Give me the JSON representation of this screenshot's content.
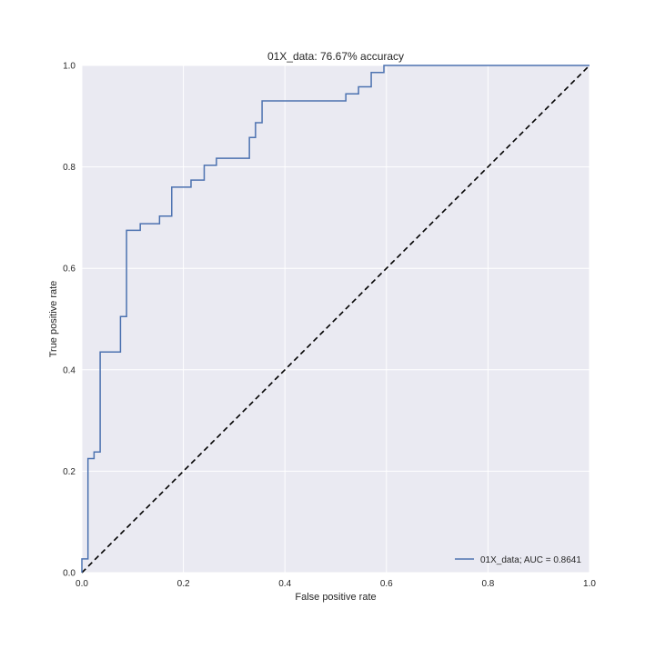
{
  "chart_data": {
    "type": "line",
    "title": "01X_data: 76.67% accuracy",
    "xlabel": "False positive rate",
    "ylabel": "True positive rate",
    "xlim": [
      0.0,
      1.0
    ],
    "ylim": [
      0.0,
      1.0
    ],
    "xticks": [
      "0.0",
      "0.2",
      "0.4",
      "0.6",
      "0.8",
      "1.0"
    ],
    "yticks": [
      "0.0",
      "0.2",
      "0.4",
      "0.6",
      "0.8",
      "1.0"
    ],
    "grid": true,
    "legend_position": "lower-right",
    "series": [
      {
        "name": "01X_data; AUC = 0.8641",
        "color": "#4c72b0",
        "style": "solid",
        "x": [
          0.0,
          0.0,
          0.012,
          0.012,
          0.024,
          0.024,
          0.036,
          0.036,
          0.076,
          0.076,
          0.088,
          0.088,
          0.115,
          0.115,
          0.153,
          0.153,
          0.177,
          0.177,
          0.215,
          0.215,
          0.241,
          0.241,
          0.265,
          0.265,
          0.33,
          0.33,
          0.342,
          0.342,
          0.355,
          0.355,
          0.52,
          0.52,
          0.545,
          0.545,
          0.57,
          0.57,
          0.595,
          0.595,
          1.0
        ],
        "y": [
          0.0,
          0.027,
          0.027,
          0.225,
          0.225,
          0.238,
          0.238,
          0.435,
          0.435,
          0.505,
          0.505,
          0.675,
          0.675,
          0.688,
          0.688,
          0.703,
          0.703,
          0.76,
          0.76,
          0.774,
          0.774,
          0.803,
          0.803,
          0.817,
          0.817,
          0.858,
          0.858,
          0.887,
          0.887,
          0.93,
          0.93,
          0.944,
          0.944,
          0.958,
          0.958,
          0.986,
          0.986,
          1.0,
          1.0
        ]
      },
      {
        "name": "",
        "color": "#000000",
        "style": "dashed",
        "x": [
          0.0,
          1.0
        ],
        "y": [
          0.0,
          1.0
        ]
      }
    ]
  }
}
